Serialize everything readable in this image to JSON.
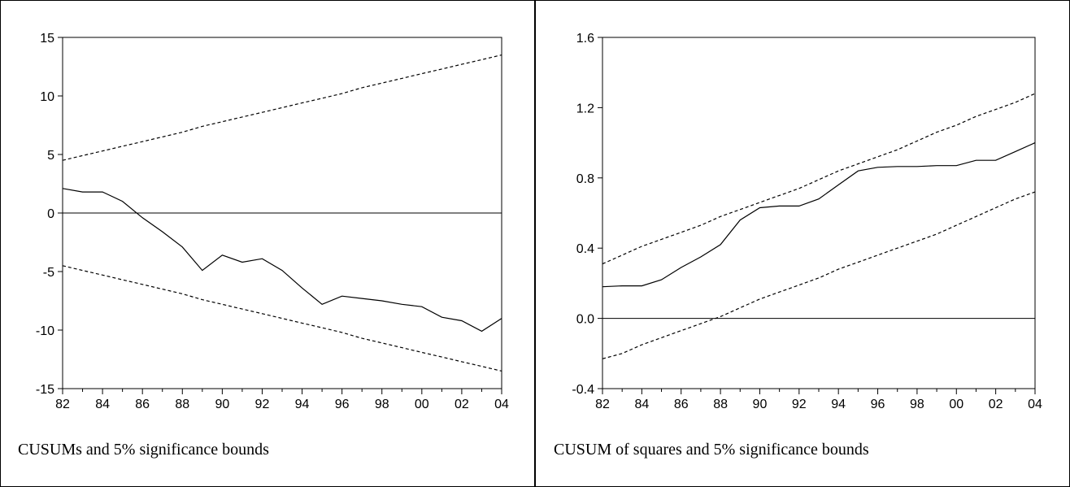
{
  "chart_data": [
    {
      "type": "line",
      "caption": "CUSUMs and 5% significance bounds",
      "x": [
        "1982",
        "1983",
        "1984",
        "1985",
        "1986",
        "1987",
        "1988",
        "1989",
        "1990",
        "1991",
        "1992",
        "1993",
        "1994",
        "1995",
        "1996",
        "1997",
        "1998",
        "1999",
        "2000",
        "2001",
        "2002",
        "2003",
        "2004"
      ],
      "xticks": [
        "82",
        "84",
        "86",
        "88",
        "90",
        "92",
        "94",
        "96",
        "98",
        "00",
        "02",
        "04"
      ],
      "ylim": [
        -15,
        15
      ],
      "yticks": [
        "15",
        "10",
        "5",
        "0",
        "-5",
        "-10",
        "-15"
      ],
      "zero_line": 0,
      "series": [
        {
          "style": "solid",
          "values": [
            2.1,
            1.8,
            1.8,
            1.0,
            -0.4,
            -1.6,
            -2.9,
            -4.9,
            -3.6,
            -4.2,
            -3.9,
            -4.9,
            -6.4,
            -7.8,
            -7.1,
            -7.3,
            -7.5,
            -7.8,
            -8.0,
            -8.9,
            -9.2,
            -10.1,
            -9.0
          ]
        },
        {
          "style": "dashed",
          "values": [
            4.5,
            4.9,
            5.3,
            5.7,
            6.1,
            6.5,
            6.9,
            7.4,
            7.8,
            8.2,
            8.6,
            9.0,
            9.4,
            9.8,
            10.2,
            10.7,
            11.1,
            11.5,
            11.9,
            12.3,
            12.7,
            13.1,
            13.5
          ]
        },
        {
          "style": "dashed",
          "values": [
            -4.5,
            -4.9,
            -5.3,
            -5.7,
            -6.1,
            -6.5,
            -6.9,
            -7.4,
            -7.8,
            -8.2,
            -8.6,
            -9.0,
            -9.4,
            -9.8,
            -10.2,
            -10.7,
            -11.1,
            -11.5,
            -11.9,
            -12.3,
            -12.7,
            -13.1,
            -13.5
          ]
        }
      ],
      "legend": "none",
      "grid": false
    },
    {
      "type": "line",
      "caption": "CUSUM of squares and 5% significance bounds",
      "x": [
        "1982",
        "1983",
        "1984",
        "1985",
        "1986",
        "1987",
        "1988",
        "1989",
        "1990",
        "1991",
        "1992",
        "1993",
        "1994",
        "1995",
        "1996",
        "1997",
        "1998",
        "1999",
        "2000",
        "2001",
        "2002",
        "2003",
        "2004"
      ],
      "xticks": [
        "82",
        "84",
        "86",
        "88",
        "90",
        "92",
        "94",
        "96",
        "98",
        "00",
        "02",
        "04"
      ],
      "ylim": [
        -0.4,
        1.6
      ],
      "yticks": [
        "1.6",
        "1.2",
        "0.8",
        "0.4",
        "0.0",
        "-0.4"
      ],
      "zero_line": 0,
      "series": [
        {
          "style": "solid",
          "values": [
            0.18,
            0.185,
            0.185,
            0.22,
            0.29,
            0.35,
            0.42,
            0.56,
            0.63,
            0.64,
            0.64,
            0.68,
            0.76,
            0.84,
            0.86,
            0.865,
            0.865,
            0.87,
            0.87,
            0.9,
            0.9,
            0.95,
            1.0
          ]
        },
        {
          "style": "dashed",
          "values": [
            0.31,
            0.36,
            0.41,
            0.45,
            0.49,
            0.53,
            0.58,
            0.62,
            0.66,
            0.7,
            0.74,
            0.79,
            0.84,
            0.88,
            0.92,
            0.96,
            1.01,
            1.06,
            1.1,
            1.15,
            1.19,
            1.23,
            1.28
          ]
        },
        {
          "style": "dashed",
          "values": [
            -0.23,
            -0.2,
            -0.15,
            -0.11,
            -0.07,
            -0.03,
            0.01,
            0.06,
            0.11,
            0.15,
            0.19,
            0.23,
            0.28,
            0.32,
            0.36,
            0.4,
            0.44,
            0.48,
            0.53,
            0.58,
            0.63,
            0.68,
            0.72
          ]
        }
      ],
      "legend": "none",
      "grid": false
    }
  ]
}
